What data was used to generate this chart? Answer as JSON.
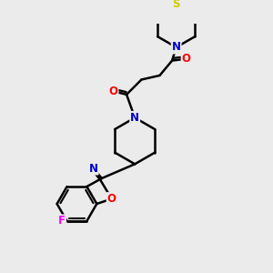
{
  "background_color": "#ebebeb",
  "atom_colors": {
    "C": "#000000",
    "N": "#0000cc",
    "O": "#ff0000",
    "S": "#cccc00",
    "F": "#ff00ff"
  },
  "bond_color": "#000000",
  "bond_width": 1.8,
  "figsize": [
    3.0,
    3.0
  ],
  "dpi": 100
}
